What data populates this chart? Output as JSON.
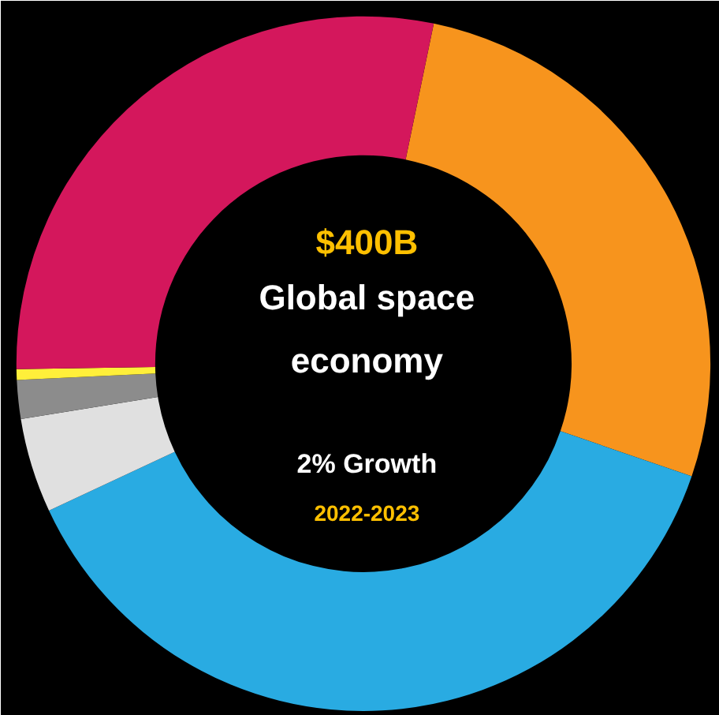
{
  "chart_data": {
    "type": "donut",
    "categories": [
      null,
      null,
      null,
      null,
      null,
      null
    ],
    "values": [
      27.0,
      37.8,
      4.4,
      1.8,
      0.5,
      28.5
    ],
    "colors": [
      "#f7941d",
      "#29abe2",
      "#e0e0e0",
      "#8c8c8c",
      "#ffef3a",
      "#d4175c"
    ],
    "annotations": [
      "$400B",
      "Global space economy",
      "2% Growth",
      "2022-2023"
    ]
  }
}
